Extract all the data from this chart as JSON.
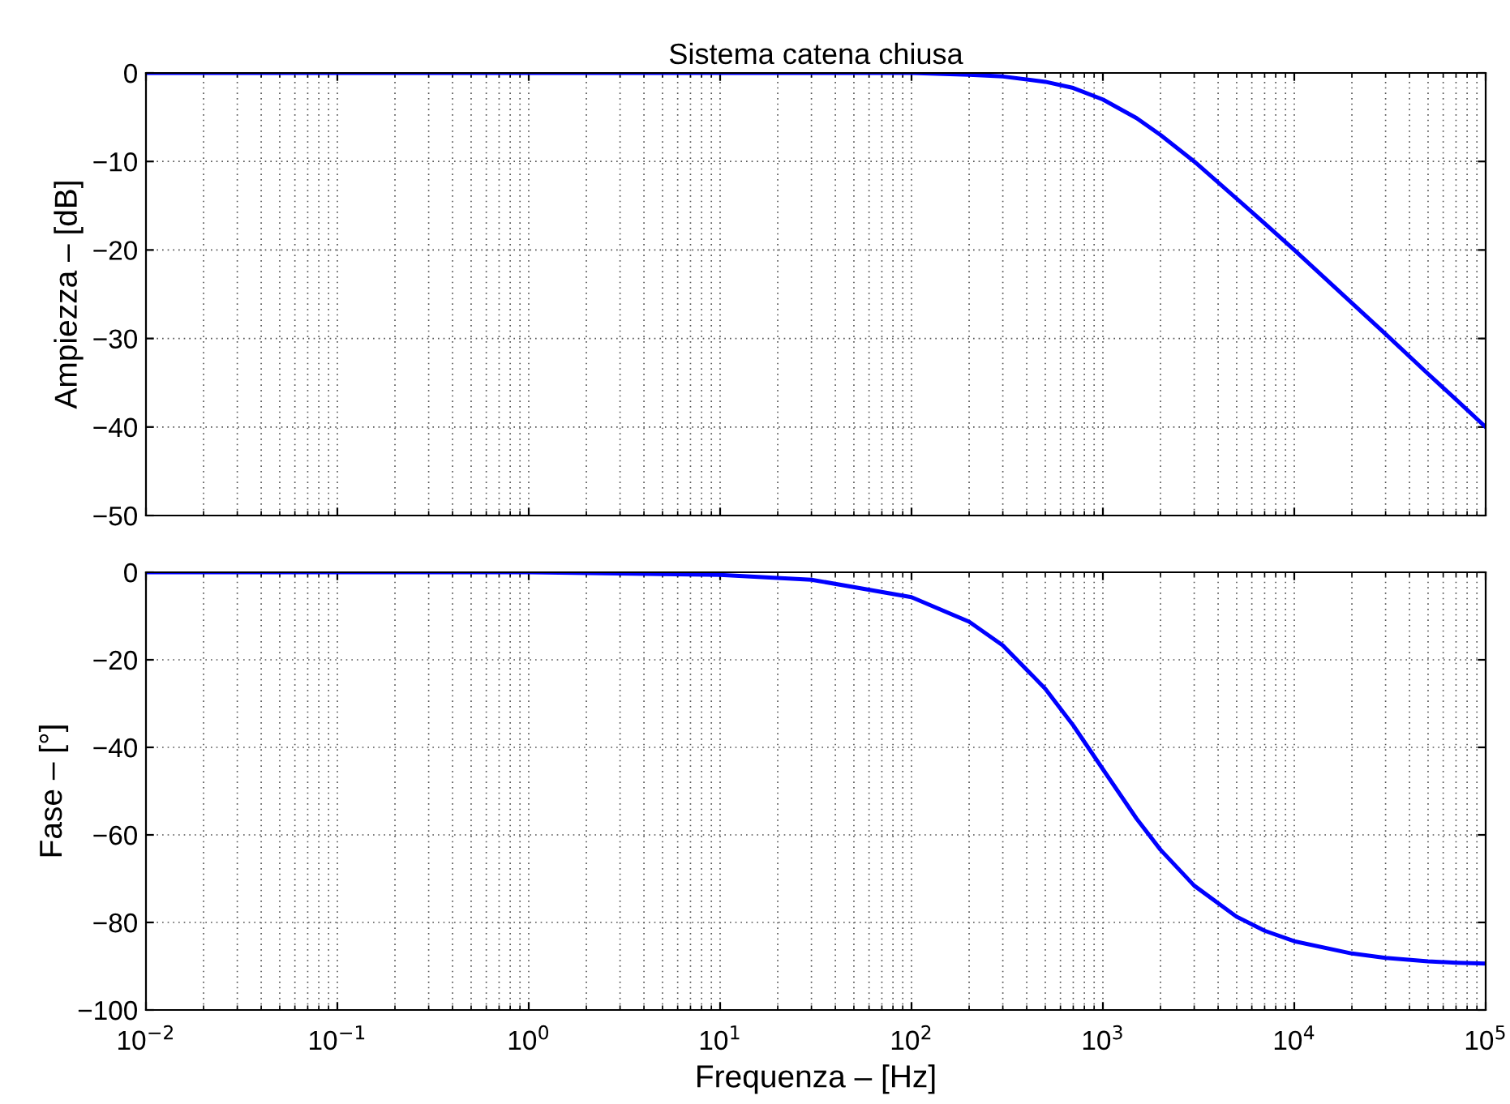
{
  "chart_data": [
    {
      "type": "line",
      "title": "Sistema catena chiusa",
      "ylabel": "Ampiezza – [dB]",
      "log": "x",
      "grid": true,
      "tick_labels": "y",
      "x": [
        0.01,
        0.1,
        1,
        10,
        30,
        100,
        200,
        300,
        500,
        700,
        1000,
        1500,
        2000,
        3000,
        5000,
        7000,
        10000,
        20000,
        30000,
        50000,
        70000,
        100000
      ],
      "series": [
        {
          "color": "#0000ff",
          "values": [
            0,
            0,
            0,
            0,
            0,
            0,
            -0.2,
            -0.4,
            -1.0,
            -1.7,
            -3.0,
            -5.1,
            -7.0,
            -10.0,
            -14.2,
            -17.0,
            -20.0,
            -26.0,
            -29.5,
            -34.0,
            -36.9,
            -40.0
          ]
        }
      ],
      "xlim": [
        0.01,
        100000
      ],
      "xticks": [
        {
          "value": 0.01,
          "label": null
        },
        {
          "value": 0.1,
          "label": null
        },
        {
          "value": 1,
          "label": null
        },
        {
          "value": 10,
          "label": null
        },
        {
          "value": 100,
          "label": null
        },
        {
          "value": 1000,
          "label": null
        },
        {
          "value": 10000,
          "label": null
        },
        {
          "value": 100000,
          "label": null
        }
      ],
      "ylim": [
        -50,
        0
      ],
      "yticks": [
        -50,
        -40,
        -30,
        -20,
        -10,
        0
      ]
    },
    {
      "type": "line",
      "xlabel": "Frequenza – [Hz]",
      "ylabel": "Fase – [°]",
      "log": "x",
      "grid": true,
      "x": [
        0.01,
        0.1,
        1,
        10,
        30,
        100,
        200,
        300,
        500,
        700,
        1000,
        1500,
        2000,
        3000,
        5000,
        7000,
        10000,
        20000,
        30000,
        50000,
        70000,
        100000
      ],
      "series": [
        {
          "color": "#0000ff",
          "values": [
            0,
            0,
            0,
            -0.6,
            -1.7,
            -5.7,
            -11.3,
            -16.7,
            -26.6,
            -35.0,
            -45.0,
            -56.3,
            -63.4,
            -71.6,
            -78.7,
            -81.9,
            -84.3,
            -87.1,
            -88.1,
            -88.9,
            -89.2,
            -89.4
          ]
        }
      ],
      "xlim": [
        0.01,
        100000
      ],
      "xticks": [
        {
          "value": 0.01,
          "label": "10$^{−2}$"
        },
        {
          "value": 0.1,
          "label": "10$^{−1}$"
        },
        {
          "value": 1,
          "label": "10$^{0}$"
        },
        {
          "value": 10,
          "label": "10$^{1}$"
        },
        {
          "value": 100,
          "label": "10$^{2}$"
        },
        {
          "value": 1000,
          "label": "10$^{3}$"
        },
        {
          "value": 10000,
          "label": "10$^{4}$"
        },
        {
          "value": 100000,
          "label": "10$^{5}$"
        }
      ],
      "ylim": [
        -100,
        0
      ],
      "yticks": [
        -100,
        -80,
        -60,
        -40,
        -20,
        0
      ]
    }
  ]
}
